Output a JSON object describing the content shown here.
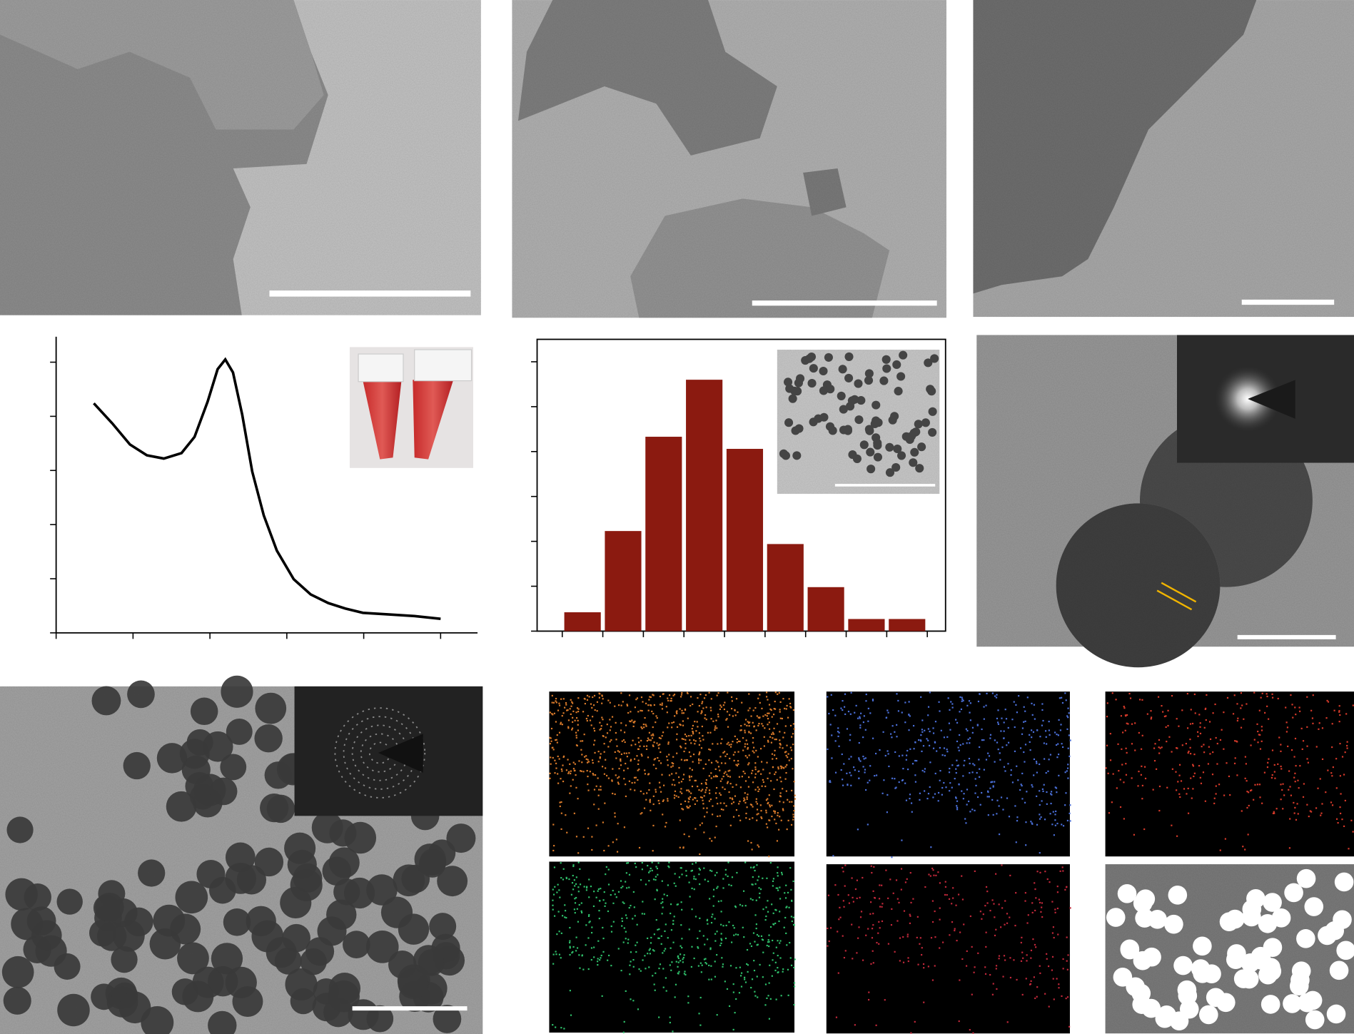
{
  "chart_data": [
    {
      "type": "line",
      "x": [
        0.49,
        0.73,
        0.96,
        1.18,
        1.4,
        1.63,
        1.8,
        1.97,
        2.1,
        2.2,
        2.3,
        2.42,
        2.55,
        2.7,
        2.87,
        3.09,
        3.31,
        3.54,
        3.76,
        3.99,
        4.33,
        4.66,
        5.0
      ],
      "values": [
        4.24,
        3.87,
        3.48,
        3.28,
        3.22,
        3.32,
        3.62,
        4.27,
        4.87,
        5.05,
        4.81,
        4.03,
        2.98,
        2.17,
        1.52,
        0.99,
        0.71,
        0.55,
        0.45,
        0.37,
        0.34,
        0.31,
        0.26
      ],
      "color": "#000000",
      "xlim": [
        0,
        5.48
      ],
      "xticks": [
        0,
        1,
        2,
        3,
        4,
        5
      ],
      "ylim": [
        0,
        5.47
      ],
      "yticks": [
        0,
        1,
        2,
        3,
        4,
        5
      ]
    },
    {
      "type": "histogram",
      "bins": [
        0,
        1,
        2,
        3,
        4,
        5,
        6,
        7,
        8,
        9
      ],
      "values": [
        0.42,
        2.23,
        4.33,
        5.6,
        4.06,
        1.94,
        0.98,
        0.27,
        0.27
      ],
      "color": "#8b1a10",
      "xlim": [
        -0.62,
        9.45
      ],
      "xticks": [
        0,
        1,
        2,
        3,
        4,
        5,
        6,
        7,
        8,
        9
      ],
      "ylim": [
        0,
        6.5
      ],
      "yticks": [
        0,
        1,
        2,
        3,
        4,
        5,
        6
      ]
    }
  ]
}
